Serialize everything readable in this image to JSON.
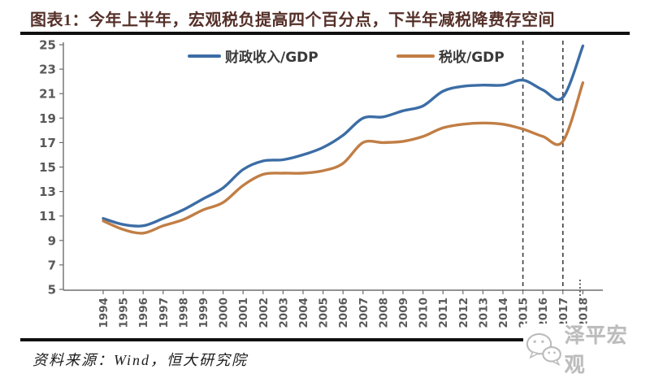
{
  "title": "图表1：今年上半年，宏观税负提高四个百分点，下半年减税降费存空间",
  "source_note": "资料来源：Wind，恒大研究院",
  "watermark": {
    "label": "泽平宏观",
    "icon": "wechat-icon"
  },
  "colors": {
    "series_fiscal": "#3C6DA5",
    "series_tax": "#C17E45",
    "title_text": "#553029",
    "axis": "#6e6e6e",
    "tick_label": "#595959",
    "dashed_line": "#3f3f3f",
    "watermark": "#bcbcbc",
    "rule": "#101010"
  },
  "chart_data": {
    "type": "line",
    "title": "图表1：今年上半年，宏观税负提高四个百分点，下半年减税降费存空间",
    "x": [
      1994,
      1995,
      1996,
      1997,
      1998,
      1999,
      2000,
      2001,
      2002,
      2003,
      2004,
      2005,
      2006,
      2007,
      2008,
      2009,
      2010,
      2011,
      2012,
      2013,
      2014,
      2015,
      2016,
      2017,
      2018
    ],
    "series": [
      {
        "name": "财政收入/GDP",
        "color": "#3C6DA5",
        "values": [
          10.8,
          10.3,
          10.2,
          10.8,
          11.5,
          12.4,
          13.3,
          14.8,
          15.5,
          15.6,
          16.0,
          16.6,
          17.6,
          19.0,
          19.1,
          19.6,
          20.0,
          21.2,
          21.6,
          21.7,
          21.7,
          22.1,
          21.3,
          20.7,
          24.9
        ]
      },
      {
        "name": "税收/GDP",
        "color": "#C17E45",
        "values": [
          10.6,
          9.9,
          9.6,
          10.2,
          10.7,
          11.5,
          12.1,
          13.5,
          14.4,
          14.5,
          14.5,
          14.7,
          15.3,
          17.0,
          17.0,
          17.1,
          17.5,
          18.2,
          18.5,
          18.6,
          18.5,
          18.1,
          17.5,
          17.1,
          21.9
        ]
      }
    ],
    "xlabel": "",
    "ylabel": "",
    "ylim": [
      5,
      25
    ],
    "yticks": [
      5,
      7,
      9,
      11,
      13,
      15,
      17,
      19,
      21,
      23,
      25
    ],
    "grid": false,
    "legend_position": "top",
    "dashed_vlines_x": [
      2015,
      2017
    ],
    "dotted_marker_x": 2018
  }
}
